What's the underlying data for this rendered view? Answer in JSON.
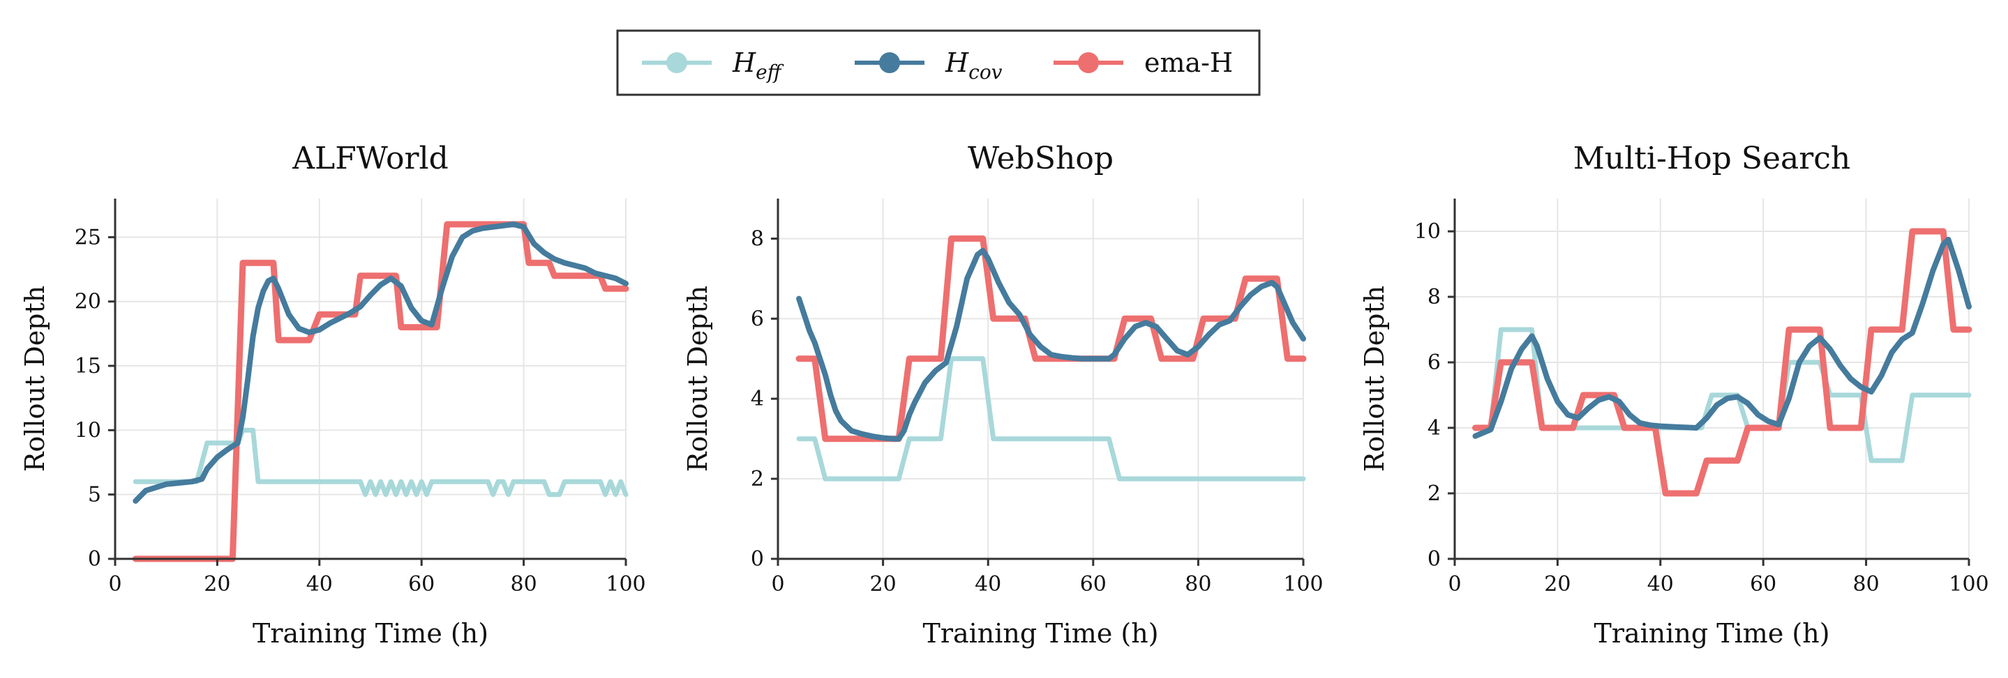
{
  "colors": {
    "h_eff": "#a8d8da",
    "h_cov": "#457b9d",
    "ema_h": "#ee6f6f",
    "grid": "#e6e6e6",
    "axis": "#333333"
  },
  "legend": [
    {
      "key": "h_eff",
      "base": "H",
      "sub": "eff"
    },
    {
      "key": "h_cov",
      "base": "H",
      "sub": "cov"
    },
    {
      "key": "ema_h",
      "base": "ema-H",
      "sub": ""
    }
  ],
  "chart_data": [
    {
      "type": "line",
      "title": "ALFWorld",
      "xlabel": "Training Time (h)",
      "ylabel": "Rollout Depth",
      "xlim": [
        0,
        100
      ],
      "ylim": [
        0,
        28
      ],
      "xticks": [
        0,
        20,
        40,
        60,
        80,
        100
      ],
      "yticks": [
        0,
        5,
        10,
        15,
        20,
        25
      ],
      "grid": true,
      "series": [
        {
          "key": "h_eff",
          "name": "H_eff",
          "x": [
            4,
            16,
            18,
            24,
            25,
            27,
            28,
            47,
            48,
            49,
            50,
            51,
            52,
            53,
            54,
            55,
            56,
            57,
            58,
            59,
            60,
            61,
            62,
            73,
            74,
            75,
            76,
            77,
            78,
            84,
            85,
            87,
            88,
            91,
            95,
            96,
            97,
            98,
            99,
            100
          ],
          "y": [
            6,
            6,
            9,
            9,
            10,
            10,
            6,
            6,
            6,
            5,
            6,
            5,
            6,
            5,
            6,
            5,
            6,
            5,
            6,
            5,
            6,
            5,
            6,
            6,
            5,
            6,
            6,
            5,
            6,
            6,
            5,
            5,
            6,
            6,
            6,
            5,
            6,
            5,
            6,
            5
          ]
        },
        {
          "key": "h_cov",
          "name": "H_cov",
          "x": [
            4,
            6,
            10,
            15,
            17,
            18,
            20,
            22,
            24,
            25,
            26,
            27,
            28,
            29,
            30,
            31,
            32,
            34,
            36,
            38,
            40,
            42,
            44,
            46,
            48,
            50,
            52,
            54,
            56,
            58,
            60,
            62,
            64,
            66,
            68,
            70,
            72,
            74,
            76,
            78,
            80,
            82,
            84,
            86,
            88,
            90,
            92,
            94,
            96,
            98,
            100
          ],
          "y": [
            4.5,
            5.3,
            5.8,
            6,
            6.2,
            7,
            7.9,
            8.5,
            9,
            11,
            14,
            17.3,
            19.5,
            20.8,
            21.6,
            21.8,
            21,
            19,
            17.9,
            17.6,
            17.8,
            18.3,
            18.7,
            19.1,
            19.6,
            20.5,
            21.3,
            21.8,
            21.2,
            19.5,
            18.5,
            18.2,
            21,
            23.5,
            25,
            25.5,
            25.7,
            25.8,
            25.9,
            26,
            25.8,
            24.5,
            23.8,
            23.3,
            23,
            22.8,
            22.6,
            22.2,
            22,
            21.8,
            21.4
          ]
        },
        {
          "key": "ema_h",
          "name": "ema-H",
          "x": [
            4,
            23,
            25,
            31,
            32,
            38,
            40,
            47,
            48,
            55,
            56,
            63,
            65,
            80,
            81,
            85,
            86,
            95,
            96,
            100
          ],
          "y": [
            0,
            0,
            23,
            23,
            17,
            17,
            19,
            19,
            22,
            22,
            18,
            18,
            26,
            26,
            23,
            23,
            22,
            22,
            21,
            21
          ]
        }
      ]
    },
    {
      "type": "line",
      "title": "WebShop",
      "xlabel": "Training Time (h)",
      "ylabel": "Rollout Depth",
      "xlim": [
        0,
        100
      ],
      "ylim": [
        0,
        9
      ],
      "xticks": [
        0,
        20,
        40,
        60,
        80,
        100
      ],
      "yticks": [
        0,
        2,
        4,
        6,
        8
      ],
      "grid": true,
      "series": [
        {
          "key": "h_eff",
          "name": "H_eff",
          "x": [
            4,
            7,
            9,
            23,
            25,
            31,
            33,
            39,
            41,
            63,
            65,
            100
          ],
          "y": [
            3,
            3,
            2,
            2,
            3,
            3,
            5,
            5,
            3,
            3,
            2,
            2
          ]
        },
        {
          "key": "h_cov",
          "name": "H_cov",
          "x": [
            4,
            5,
            6,
            7,
            8,
            9,
            10,
            11,
            12,
            14,
            16,
            18,
            20,
            22,
            23,
            24,
            25,
            26,
            28,
            30,
            32,
            34,
            36,
            38,
            39,
            40,
            42,
            44,
            46,
            48,
            50,
            52,
            54,
            56,
            58,
            60,
            62,
            63,
            64,
            66,
            68,
            70,
            72,
            74,
            76,
            78,
            80,
            82,
            84,
            86,
            88,
            90,
            92,
            94,
            95,
            96,
            98,
            100
          ],
          "y": [
            6.5,
            6.1,
            5.7,
            5.4,
            5,
            4.6,
            4.1,
            3.7,
            3.45,
            3.2,
            3.12,
            3.06,
            3.02,
            3,
            3,
            3.2,
            3.6,
            3.9,
            4.4,
            4.7,
            4.9,
            5.8,
            7,
            7.6,
            7.7,
            7.5,
            6.9,
            6.4,
            6.1,
            5.6,
            5.3,
            5.1,
            5.05,
            5.02,
            5,
            5,
            5,
            5,
            5.1,
            5.5,
            5.8,
            5.9,
            5.8,
            5.5,
            5.2,
            5.1,
            5.3,
            5.6,
            5.85,
            5.95,
            6.3,
            6.6,
            6.8,
            6.9,
            6.8,
            6.5,
            5.9,
            5.5
          ]
        },
        {
          "key": "ema_h",
          "name": "ema-H",
          "x": [
            4,
            7,
            9,
            23,
            25,
            31,
            33,
            39,
            41,
            47,
            49,
            64,
            66,
            71,
            73,
            79,
            81,
            87,
            89,
            95,
            97,
            100
          ],
          "y": [
            5,
            5,
            3,
            3,
            5,
            5,
            8,
            8,
            6,
            6,
            5,
            5,
            6,
            6,
            5,
            5,
            6,
            6,
            7,
            7,
            5,
            5
          ]
        }
      ]
    },
    {
      "type": "line",
      "title": "Multi-Hop Search",
      "xlabel": "Training Time (h)",
      "ylabel": "Rollout Depth",
      "xlim": [
        0,
        100
      ],
      "ylim": [
        0,
        11
      ],
      "xticks": [
        0,
        20,
        40,
        60,
        80,
        100
      ],
      "yticks": [
        0,
        2,
        4,
        6,
        8,
        10
      ],
      "grid": true,
      "series": [
        {
          "key": "h_eff",
          "name": "H_eff",
          "x": [
            4,
            7,
            9,
            15,
            17,
            48,
            50,
            55,
            57,
            63,
            65,
            71,
            73,
            79,
            81,
            87,
            89,
            100
          ],
          "y": [
            4,
            4,
            7,
            7,
            4,
            4,
            5,
            5,
            4,
            4,
            6,
            6,
            5,
            5,
            3,
            3,
            5,
            5
          ]
        },
        {
          "key": "h_cov",
          "name": "H_cov",
          "x": [
            4,
            7,
            9,
            11,
            13,
            15,
            16,
            18,
            20,
            22,
            24,
            26,
            28,
            30,
            32,
            34,
            36,
            38,
            40,
            44,
            47,
            49,
            51,
            53,
            55,
            57,
            59,
            61,
            63,
            65,
            67,
            69,
            71,
            73,
            75,
            77,
            79,
            81,
            83,
            85,
            87,
            89,
            91,
            93,
            95,
            96,
            98,
            100
          ],
          "y": [
            3.75,
            3.95,
            4.8,
            5.8,
            6.4,
            6.8,
            6.5,
            5.5,
            4.8,
            4.4,
            4.3,
            4.6,
            4.85,
            4.95,
            4.8,
            4.4,
            4.15,
            4.08,
            4.05,
            4.02,
            4,
            4.3,
            4.7,
            4.9,
            4.95,
            4.75,
            4.4,
            4.2,
            4.1,
            4.9,
            6,
            6.5,
            6.75,
            6.4,
            5.9,
            5.5,
            5.25,
            5.1,
            5.6,
            6.3,
            6.7,
            6.9,
            7.8,
            8.8,
            9.6,
            9.75,
            8.8,
            7.7
          ]
        },
        {
          "key": "ema_h",
          "name": "ema-H",
          "x": [
            4,
            7,
            9,
            15,
            17,
            23,
            25,
            31,
            33,
            39,
            41,
            47,
            49,
            55,
            57,
            63,
            65,
            71,
            73,
            79,
            81,
            87,
            89,
            95,
            97,
            100
          ],
          "y": [
            4,
            4,
            6,
            6,
            4,
            4,
            5,
            5,
            4,
            4,
            2,
            2,
            3,
            3,
            4,
            4,
            7,
            7,
            4,
            4,
            7,
            7,
            10,
            10,
            7,
            7
          ]
        }
      ]
    }
  ]
}
